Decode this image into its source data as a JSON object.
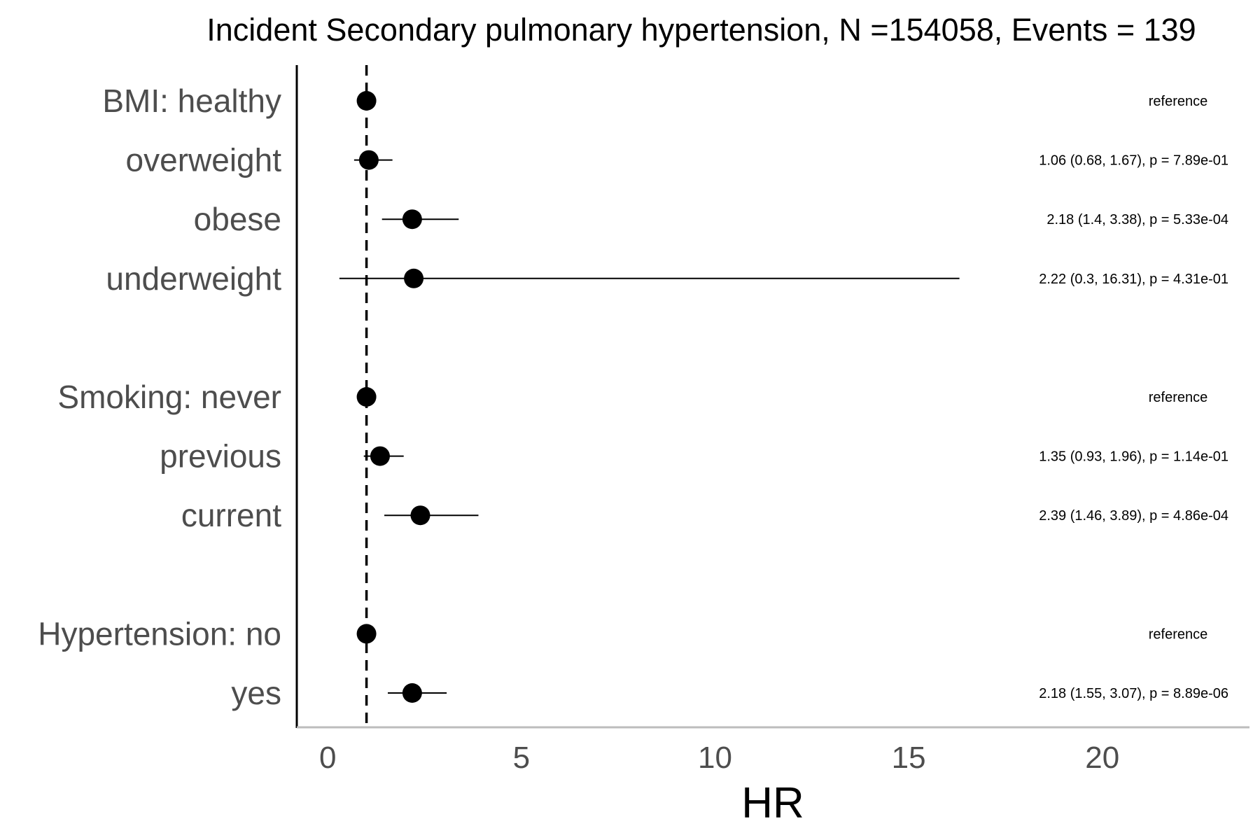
{
  "chart_data": {
    "type": "forest",
    "title": "Incident Secondary pulmonary hypertension, N =154058, Events = 139",
    "xlabel": "HR",
    "xlim": [
      -0.8,
      23.8
    ],
    "xticks": [
      0,
      5,
      10,
      15,
      20
    ],
    "reference_line": 1,
    "grid": false,
    "rows": [
      {
        "label": "BMI: healthy",
        "hr": 1.0,
        "lo": null,
        "hi": null,
        "annotation": "reference"
      },
      {
        "label": "overweight",
        "hr": 1.06,
        "lo": 0.68,
        "hi": 1.67,
        "annotation": "1.06 (0.68, 1.67), p = 7.89e-01"
      },
      {
        "label": "obese",
        "hr": 2.18,
        "lo": 1.4,
        "hi": 3.38,
        "annotation": "2.18 (1.4, 3.38), p = 5.33e-04"
      },
      {
        "label": "underweight",
        "hr": 2.22,
        "lo": 0.3,
        "hi": 16.31,
        "annotation": "2.22 (0.3, 16.31), p = 4.31e-01"
      },
      {
        "label": "",
        "hr": null,
        "lo": null,
        "hi": null,
        "annotation": ""
      },
      {
        "label": "Smoking: never",
        "hr": 1.0,
        "lo": null,
        "hi": null,
        "annotation": "reference"
      },
      {
        "label": "previous",
        "hr": 1.35,
        "lo": 0.93,
        "hi": 1.96,
        "annotation": "1.35 (0.93, 1.96), p = 1.14e-01"
      },
      {
        "label": "current",
        "hr": 2.39,
        "lo": 1.46,
        "hi": 3.89,
        "annotation": "2.39 (1.46, 3.89), p = 4.86e-04"
      },
      {
        "label": "",
        "hr": null,
        "lo": null,
        "hi": null,
        "annotation": ""
      },
      {
        "label": "Hypertension: no",
        "hr": 1.0,
        "lo": null,
        "hi": null,
        "annotation": "reference"
      },
      {
        "label": "yes",
        "hr": 2.18,
        "lo": 1.55,
        "hi": 3.07,
        "annotation": "2.18 (1.55, 3.07), p = 8.89e-06"
      }
    ]
  }
}
